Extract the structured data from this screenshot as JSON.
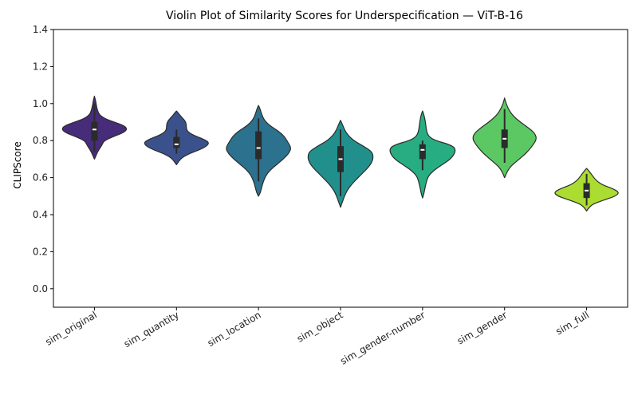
{
  "chart_data": {
    "type": "violin",
    "title": "Violin Plot of Similarity Scores for Underspecification — ViT-B-16",
    "xlabel": "",
    "ylabel": "CLIPScore",
    "ylim": [
      -0.1,
      1.4
    ],
    "yticks": [
      0.0,
      0.2,
      0.4,
      0.6,
      0.8,
      1.0,
      1.2,
      1.4
    ],
    "categories": [
      "sim_original",
      "sim_quantity",
      "sim_location",
      "sim_object",
      "sim_gender-number",
      "sim_gender",
      "sim_full"
    ],
    "colors": [
      "#472c7a",
      "#3b518b",
      "#2c718e",
      "#21908d",
      "#27ad81",
      "#5cc863",
      "#aadc32"
    ],
    "violins": [
      {
        "name": "sim_original",
        "min": 0.7,
        "max": 1.04,
        "q1": 0.8,
        "median": 0.86,
        "q3": 0.9,
        "whisker_low": 0.74,
        "whisker_high": 1.0,
        "density": [
          [
            0.7,
            0.0
          ],
          [
            0.72,
            0.05
          ],
          [
            0.74,
            0.1
          ],
          [
            0.76,
            0.17
          ],
          [
            0.78,
            0.24
          ],
          [
            0.8,
            0.3
          ],
          [
            0.82,
            0.55
          ],
          [
            0.84,
            0.85
          ],
          [
            0.86,
            1.0
          ],
          [
            0.88,
            0.92
          ],
          [
            0.9,
            0.6
          ],
          [
            0.92,
            0.3
          ],
          [
            0.94,
            0.15
          ],
          [
            0.96,
            0.1
          ],
          [
            0.98,
            0.07
          ],
          [
            1.0,
            0.05
          ],
          [
            1.02,
            0.03
          ],
          [
            1.04,
            0.0
          ]
        ]
      },
      {
        "name": "sim_quantity",
        "min": 0.67,
        "max": 0.96,
        "q1": 0.76,
        "median": 0.78,
        "q3": 0.82,
        "whisker_low": 0.73,
        "whisker_high": 0.86,
        "density": [
          [
            0.67,
            0.0
          ],
          [
            0.69,
            0.08
          ],
          [
            0.71,
            0.18
          ],
          [
            0.73,
            0.4
          ],
          [
            0.75,
            0.7
          ],
          [
            0.77,
            0.92
          ],
          [
            0.79,
            1.0
          ],
          [
            0.81,
            0.8
          ],
          [
            0.83,
            0.5
          ],
          [
            0.85,
            0.33
          ],
          [
            0.87,
            0.3
          ],
          [
            0.89,
            0.3
          ],
          [
            0.91,
            0.25
          ],
          [
            0.93,
            0.14
          ],
          [
            0.95,
            0.05
          ],
          [
            0.96,
            0.0
          ]
        ]
      },
      {
        "name": "sim_location",
        "min": 0.5,
        "max": 0.99,
        "q1": 0.7,
        "median": 0.76,
        "q3": 0.85,
        "whisker_low": 0.58,
        "whisker_high": 0.92,
        "density": [
          [
            0.5,
            0.0
          ],
          [
            0.52,
            0.06
          ],
          [
            0.55,
            0.1
          ],
          [
            0.58,
            0.15
          ],
          [
            0.61,
            0.22
          ],
          [
            0.64,
            0.35
          ],
          [
            0.67,
            0.55
          ],
          [
            0.7,
            0.75
          ],
          [
            0.73,
            0.92
          ],
          [
            0.76,
            1.0
          ],
          [
            0.79,
            0.9
          ],
          [
            0.82,
            0.8
          ],
          [
            0.85,
            0.62
          ],
          [
            0.88,
            0.35
          ],
          [
            0.91,
            0.18
          ],
          [
            0.94,
            0.1
          ],
          [
            0.97,
            0.05
          ],
          [
            0.99,
            0.0
          ]
        ]
      },
      {
        "name": "sim_object",
        "min": 0.44,
        "max": 0.91,
        "q1": 0.63,
        "median": 0.7,
        "q3": 0.77,
        "whisker_low": 0.5,
        "whisker_high": 0.86,
        "density": [
          [
            0.44,
            0.0
          ],
          [
            0.47,
            0.06
          ],
          [
            0.5,
            0.12
          ],
          [
            0.53,
            0.2
          ],
          [
            0.56,
            0.32
          ],
          [
            0.59,
            0.48
          ],
          [
            0.62,
            0.65
          ],
          [
            0.65,
            0.82
          ],
          [
            0.68,
            0.95
          ],
          [
            0.71,
            1.0
          ],
          [
            0.74,
            0.96
          ],
          [
            0.77,
            0.7
          ],
          [
            0.8,
            0.4
          ],
          [
            0.83,
            0.22
          ],
          [
            0.86,
            0.12
          ],
          [
            0.89,
            0.05
          ],
          [
            0.91,
            0.0
          ]
        ]
      },
      {
        "name": "sim_gender-number",
        "min": 0.49,
        "max": 0.96,
        "q1": 0.7,
        "median": 0.75,
        "q3": 0.78,
        "whisker_low": 0.64,
        "whisker_high": 0.8,
        "density": [
          [
            0.49,
            0.0
          ],
          [
            0.52,
            0.05
          ],
          [
            0.55,
            0.08
          ],
          [
            0.58,
            0.12
          ],
          [
            0.61,
            0.18
          ],
          [
            0.64,
            0.35
          ],
          [
            0.67,
            0.6
          ],
          [
            0.7,
            0.85
          ],
          [
            0.73,
            0.98
          ],
          [
            0.76,
            1.0
          ],
          [
            0.78,
            0.8
          ],
          [
            0.8,
            0.4
          ],
          [
            0.82,
            0.2
          ],
          [
            0.85,
            0.12
          ],
          [
            0.88,
            0.1
          ],
          [
            0.91,
            0.08
          ],
          [
            0.94,
            0.04
          ],
          [
            0.96,
            0.0
          ]
        ]
      },
      {
        "name": "sim_gender",
        "min": 0.6,
        "max": 1.03,
        "q1": 0.76,
        "median": 0.81,
        "q3": 0.86,
        "whisker_low": 0.68,
        "whisker_high": 0.97,
        "density": [
          [
            0.6,
            0.0
          ],
          [
            0.63,
            0.07
          ],
          [
            0.66,
            0.18
          ],
          [
            0.69,
            0.38
          ],
          [
            0.72,
            0.58
          ],
          [
            0.75,
            0.75
          ],
          [
            0.78,
            0.88
          ],
          [
            0.81,
            0.98
          ],
          [
            0.84,
            0.92
          ],
          [
            0.87,
            0.72
          ],
          [
            0.9,
            0.48
          ],
          [
            0.93,
            0.28
          ],
          [
            0.96,
            0.15
          ],
          [
            0.99,
            0.07
          ],
          [
            1.01,
            0.03
          ],
          [
            1.03,
            0.0
          ]
        ]
      },
      {
        "name": "sim_full",
        "min": 0.42,
        "max": 0.65,
        "q1": 0.49,
        "median": 0.53,
        "q3": 0.57,
        "whisker_low": 0.45,
        "whisker_high": 0.62,
        "density": [
          [
            0.42,
            0.0
          ],
          [
            0.44,
            0.08
          ],
          [
            0.46,
            0.22
          ],
          [
            0.48,
            0.55
          ],
          [
            0.5,
            0.88
          ],
          [
            0.52,
            1.0
          ],
          [
            0.54,
            0.8
          ],
          [
            0.56,
            0.5
          ],
          [
            0.58,
            0.32
          ],
          [
            0.6,
            0.22
          ],
          [
            0.62,
            0.14
          ],
          [
            0.64,
            0.05
          ],
          [
            0.65,
            0.0
          ]
        ]
      }
    ]
  }
}
